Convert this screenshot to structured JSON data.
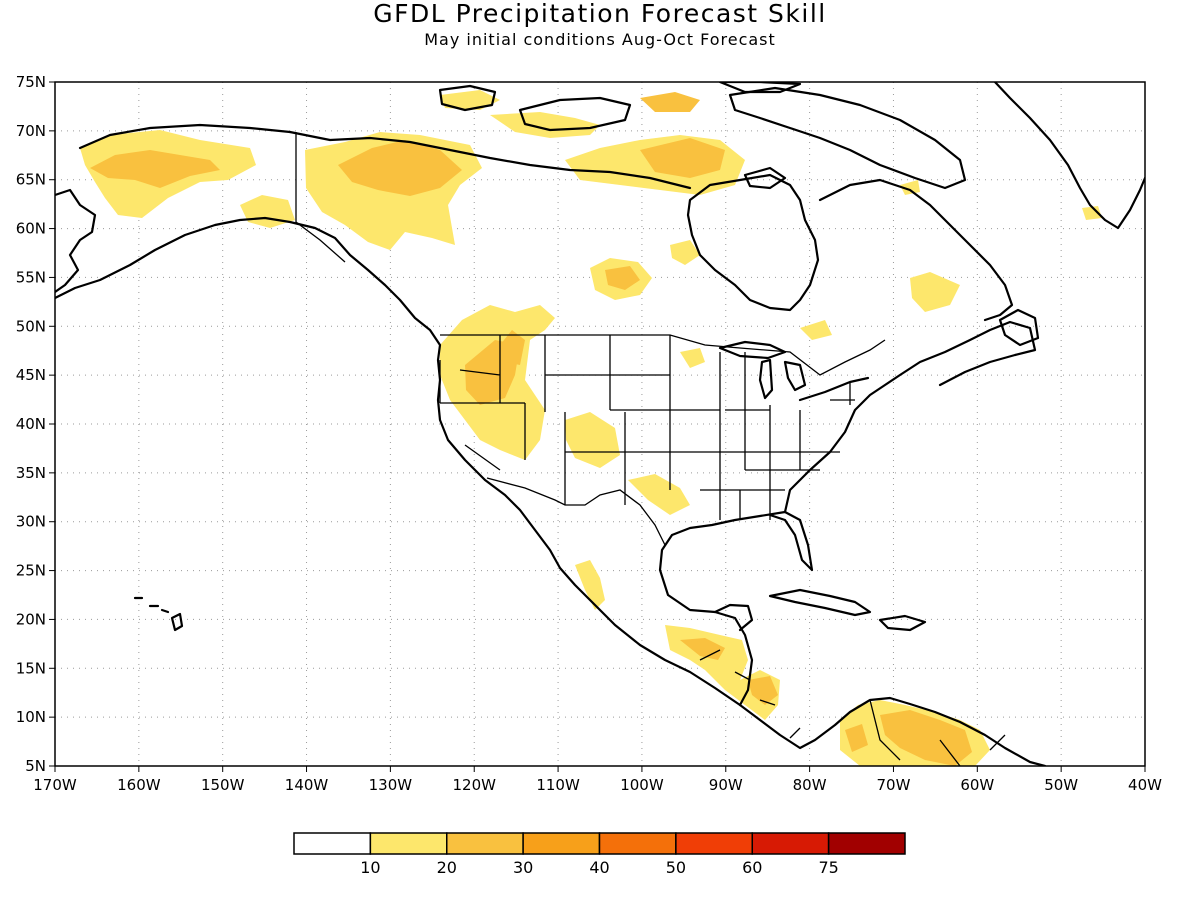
{
  "title": "GFDL Precipitation Forecast Skill",
  "subtitle": "May initial conditions  Aug-Oct Forecast",
  "map": {
    "lon_range": [
      -170,
      -40
    ],
    "lat_range": [
      5,
      75
    ],
    "lat_labels": [
      "75N",
      "70N",
      "65N",
      "60N",
      "55N",
      "50N",
      "45N",
      "40N",
      "35N",
      "30N",
      "25N",
      "20N",
      "15N",
      "10N",
      "5N"
    ],
    "lon_labels": [
      "170W",
      "160W",
      "150W",
      "140W",
      "130W",
      "120W",
      "110W",
      "100W",
      "90W",
      "80W",
      "70W",
      "60W",
      "50W",
      "40W"
    ],
    "gridlines": "dotted",
    "skill_regions": [
      {
        "region": "Alaska / Yukon",
        "level": 1
      },
      {
        "region": "Northwest Territories",
        "level": 2
      },
      {
        "region": "US Pacific Northwest / Great Basin",
        "level": 2
      },
      {
        "region": "Colorado / Utah",
        "level": 1
      },
      {
        "region": "Central America",
        "level": 2
      },
      {
        "region": "Northern South America",
        "level": 2
      },
      {
        "region": "Hudson Bay / Manitoba",
        "level": 2
      },
      {
        "region": "Canadian Arctic Archipelago",
        "level": 2
      }
    ]
  },
  "colorbar": {
    "labels": [
      "10",
      "20",
      "30",
      "40",
      "50",
      "60",
      "75"
    ],
    "colors": [
      "#ffffff",
      "#fde76c",
      "#f9c13f",
      "#f7a01a",
      "#f4700a",
      "#f03e06",
      "#d71a04",
      "#a10000"
    ]
  }
}
